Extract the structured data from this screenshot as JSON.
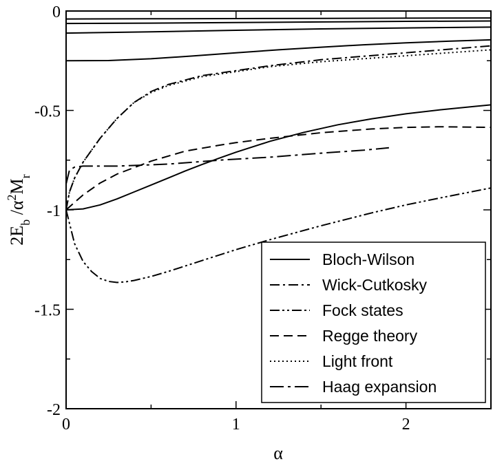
{
  "chart_data": {
    "type": "line",
    "xlabel": "α",
    "ylabel_parts": [
      "2E",
      "b",
      " /α",
      "2",
      "M",
      "r"
    ],
    "xlim": [
      0,
      2.5
    ],
    "ylim": [
      -2,
      0
    ],
    "xticks": [
      0,
      1,
      2
    ],
    "xtick_labels": [
      "0",
      "1",
      "2"
    ],
    "yticks": [
      0,
      -0.5,
      -1,
      -1.5,
      -2
    ],
    "ytick_labels": [
      "0",
      "-0.5",
      "-1",
      "-1.5",
      "-2"
    ],
    "grid": false,
    "legend_position": "bottom-right",
    "legend": [
      {
        "name": "Bloch-Wilson",
        "dash": "solid"
      },
      {
        "name": "Wick-Cutkosky",
        "dash": "dash-dot"
      },
      {
        "name": "Fock states",
        "dash": "dash-dot-dot"
      },
      {
        "name": "Regge theory",
        "dash": "dashed"
      },
      {
        "name": "Light front",
        "dash": "dotted"
      },
      {
        "name": "Haag expansion",
        "dash": "long-dash-dot"
      }
    ],
    "series": [
      {
        "style": "solid",
        "x": [
          0,
          0.1,
          0.2,
          0.3,
          0.4,
          0.5,
          0.6,
          0.7,
          0.8,
          0.9,
          1.0,
          1.2,
          1.4,
          1.6,
          1.8,
          2.0,
          2.2,
          2.4,
          2.5
        ],
        "y": [
          -1.0,
          -0.995,
          -0.975,
          -0.945,
          -0.91,
          -0.875,
          -0.84,
          -0.805,
          -0.772,
          -0.74,
          -0.71,
          -0.655,
          -0.61,
          -0.572,
          -0.542,
          -0.517,
          -0.497,
          -0.48,
          -0.472
        ]
      },
      {
        "style": "solid",
        "x": [
          0,
          0.25,
          0.5,
          0.75,
          1.0,
          1.25,
          1.5,
          1.75,
          2.0,
          2.25,
          2.5
        ],
        "y": [
          -0.25,
          -0.249,
          -0.24,
          -0.226,
          -0.21,
          -0.195,
          -0.182,
          -0.17,
          -0.16,
          -0.152,
          -0.145
        ]
      },
      {
        "style": "solid",
        "x": [
          0,
          0.5,
          1.0,
          1.5,
          2.0,
          2.5
        ],
        "y": [
          -0.111,
          -0.105,
          -0.097,
          -0.09,
          -0.085,
          -0.081
        ]
      },
      {
        "style": "solid",
        "x": [
          0,
          0.5,
          1.0,
          1.5,
          2.0,
          2.5
        ],
        "y": [
          -0.0625,
          -0.061,
          -0.058,
          -0.055,
          -0.052,
          -0.05
        ]
      },
      {
        "style": "solid",
        "x": [
          0,
          0.5,
          1.0,
          1.5,
          2.0,
          2.5
        ],
        "y": [
          -0.04,
          -0.039,
          -0.038,
          -0.037,
          -0.036,
          -0.035
        ]
      },
      {
        "style": "dash-dot",
        "x": [
          0,
          0.02,
          0.05,
          0.1,
          0.15,
          0.2,
          0.25,
          0.3,
          0.4,
          0.5,
          0.6,
          0.8,
          1.0,
          1.2,
          1.5,
          2.0,
          2.5
        ],
        "y": [
          -1.0,
          -0.91,
          -0.84,
          -0.76,
          -0.7,
          -0.64,
          -0.59,
          -0.54,
          -0.46,
          -0.405,
          -0.37,
          -0.325,
          -0.3,
          -0.275,
          -0.245,
          -0.21,
          -0.175
        ]
      },
      {
        "style": "dash-dot-dot",
        "x": [
          0,
          0.05,
          0.1,
          0.15,
          0.2,
          0.25,
          0.3,
          0.35,
          0.4,
          0.5,
          0.6,
          0.8,
          1.0,
          1.2,
          1.5,
          1.8,
          2.0,
          2.2,
          2.5
        ],
        "y": [
          -1.0,
          -1.17,
          -1.26,
          -1.31,
          -1.345,
          -1.36,
          -1.365,
          -1.362,
          -1.355,
          -1.335,
          -1.31,
          -1.255,
          -1.2,
          -1.15,
          -1.08,
          -1.015,
          -0.975,
          -0.94,
          -0.89
        ]
      },
      {
        "style": "dashed",
        "x": [
          0,
          0.1,
          0.2,
          0.3,
          0.5,
          0.7,
          0.9,
          1.0,
          1.2,
          1.5,
          1.8,
          2.0,
          2.2,
          2.5
        ],
        "y": [
          -1.0,
          -0.925,
          -0.865,
          -0.82,
          -0.755,
          -0.705,
          -0.675,
          -0.662,
          -0.64,
          -0.612,
          -0.593,
          -0.585,
          -0.582,
          -0.585
        ]
      },
      {
        "style": "dotted",
        "x": [
          0,
          0.02,
          0.05,
          0.1,
          0.15,
          0.2,
          0.25,
          0.3,
          0.4,
          0.5,
          0.6,
          0.8,
          1.0,
          1.2,
          1.5,
          2.0,
          2.5
        ],
        "y": [
          -1.0,
          -0.91,
          -0.84,
          -0.76,
          -0.7,
          -0.64,
          -0.59,
          -0.54,
          -0.46,
          -0.41,
          -0.375,
          -0.33,
          -0.305,
          -0.28,
          -0.255,
          -0.225,
          -0.195
        ]
      },
      {
        "style": "long-dash-dot",
        "x": [
          0,
          0.02,
          0.05,
          0.1,
          0.3,
          0.6,
          0.9,
          1.2,
          1.5,
          1.75,
          1.9
        ],
        "y": [
          -0.87,
          -0.8,
          -0.785,
          -0.78,
          -0.78,
          -0.77,
          -0.75,
          -0.735,
          -0.715,
          -0.7,
          -0.688
        ]
      }
    ]
  }
}
